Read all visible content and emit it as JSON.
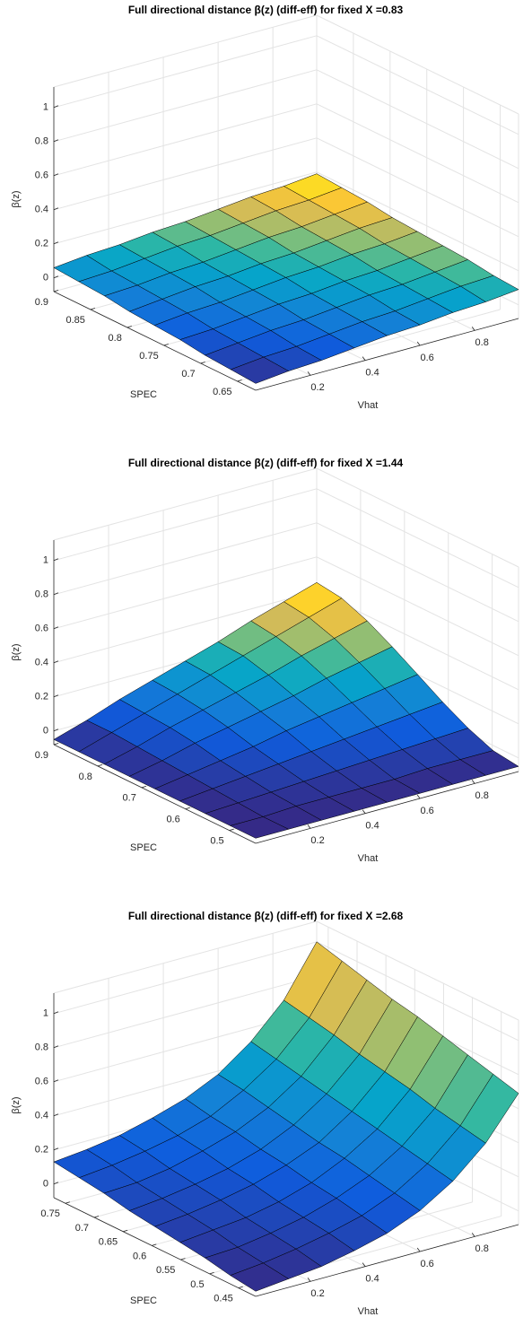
{
  "chart_data": [
    {
      "type": "surface",
      "title": "Full directional distance β(z) (diff-eff) for fixed X =0.83",
      "xlabel": "Vhat",
      "ylabel": "SPEC",
      "zlabel": "β(z)",
      "colormap": "parula",
      "grid": true,
      "xlim": [
        0,
        0.96
      ],
      "ylim": [
        0.625,
        0.9
      ],
      "zlim": [
        -0.08,
        1.12
      ],
      "xticks": [
        0.2,
        0.4,
        0.6,
        0.8
      ],
      "yticks": [
        0.65,
        0.7,
        0.75,
        0.8,
        0.85,
        0.9
      ],
      "zticks": [
        0,
        0.2,
        0.4,
        0.6,
        0.8,
        1
      ],
      "x": [
        0,
        0.12,
        0.24,
        0.36,
        0.48,
        0.6,
        0.72,
        0.84,
        0.96
      ],
      "y": [
        0.625,
        0.659,
        0.694,
        0.728,
        0.763,
        0.797,
        0.831,
        0.866,
        0.9
      ],
      "z": [
        [
          -0.04,
          -0.02,
          -0.01,
          0.01,
          0.03,
          0.04,
          0.06,
          0.07,
          0.09
        ],
        [
          -0.03,
          -0.01,
          0.0,
          0.02,
          0.04,
          0.05,
          0.07,
          0.09,
          0.1
        ],
        [
          -0.02,
          0.0,
          0.02,
          0.03,
          0.05,
          0.07,
          0.08,
          0.1,
          0.12
        ],
        [
          0.0,
          0.01,
          0.03,
          0.05,
          0.06,
          0.08,
          0.09,
          0.11,
          0.13
        ],
        [
          0.01,
          0.03,
          0.04,
          0.06,
          0.08,
          0.09,
          0.11,
          0.12,
          0.14
        ],
        [
          0.02,
          0.04,
          0.06,
          0.07,
          0.09,
          0.1,
          0.12,
          0.14,
          0.15
        ],
        [
          0.04,
          0.05,
          0.07,
          0.08,
          0.1,
          0.12,
          0.13,
          0.15,
          0.17
        ],
        [
          0.05,
          0.06,
          0.08,
          0.1,
          0.11,
          0.13,
          0.15,
          0.16,
          0.18
        ],
        [
          0.06,
          0.08,
          0.09,
          0.11,
          0.12,
          0.14,
          0.16,
          0.17,
          0.19
        ]
      ]
    },
    {
      "type": "surface",
      "title": "Full directional distance β(z) (diff-eff) for fixed X =1.44",
      "xlabel": "Vhat",
      "ylabel": "SPEC",
      "zlabel": "β(z)",
      "colormap": "parula",
      "grid": true,
      "xlim": [
        0,
        0.96
      ],
      "ylim": [
        0.44,
        0.9
      ],
      "zlim": [
        -0.08,
        1.12
      ],
      "xticks": [
        0.2,
        0.4,
        0.6,
        0.8
      ],
      "yticks": [
        0.5,
        0.6,
        0.7,
        0.8,
        0.9
      ],
      "zticks": [
        0,
        0.2,
        0.4,
        0.6,
        0.8,
        1
      ],
      "x": [
        0,
        0.12,
        0.24,
        0.36,
        0.48,
        0.6,
        0.72,
        0.84,
        0.96
      ],
      "y": [
        0.44,
        0.498,
        0.555,
        0.613,
        0.67,
        0.728,
        0.785,
        0.843,
        0.9
      ],
      "z": [
        [
          -0.05,
          -0.05,
          -0.05,
          -0.05,
          -0.05,
          -0.05,
          -0.05,
          -0.05,
          -0.05
        ],
        [
          -0.05,
          -0.05,
          -0.04,
          -0.04,
          -0.04,
          -0.04,
          -0.03,
          -0.03,
          -0.03
        ],
        [
          -0.05,
          -0.04,
          -0.03,
          -0.02,
          -0.01,
          0.0,
          0.01,
          0.02,
          0.03
        ],
        [
          -0.05,
          -0.03,
          -0.01,
          0.01,
          0.03,
          0.05,
          0.07,
          0.09,
          0.11
        ],
        [
          -0.05,
          -0.02,
          0.01,
          0.04,
          0.08,
          0.11,
          0.14,
          0.17,
          0.2
        ],
        [
          -0.05,
          -0.01,
          0.04,
          0.08,
          0.12,
          0.16,
          0.21,
          0.25,
          0.29
        ],
        [
          -0.05,
          0.0,
          0.06,
          0.11,
          0.16,
          0.21,
          0.27,
          0.32,
          0.37
        ],
        [
          -0.05,
          0.01,
          0.07,
          0.13,
          0.19,
          0.25,
          0.31,
          0.37,
          0.43
        ],
        [
          -0.05,
          0.01,
          0.08,
          0.14,
          0.2,
          0.26,
          0.33,
          0.39,
          0.45
        ]
      ]
    },
    {
      "type": "surface",
      "title": "Full directional distance β(z) (diff-eff) for fixed X =2.68",
      "xlabel": "Vhat",
      "ylabel": "SPEC",
      "zlabel": "β(z)",
      "colormap": "parula",
      "grid": true,
      "xlim": [
        0,
        0.96
      ],
      "ylim": [
        0.42,
        0.77
      ],
      "zlim": [
        -0.08,
        1.12
      ],
      "xticks": [
        0.2,
        0.4,
        0.6,
        0.8
      ],
      "yticks": [
        0.45,
        0.5,
        0.55,
        0.6,
        0.65,
        0.7,
        0.75
      ],
      "zticks": [
        0,
        0.2,
        0.4,
        0.6,
        0.8,
        1
      ],
      "x": [
        0,
        0.12,
        0.24,
        0.36,
        0.48,
        0.6,
        0.72,
        0.84,
        0.96
      ],
      "y": [
        0.42,
        0.464,
        0.508,
        0.551,
        0.595,
        0.639,
        0.683,
        0.726,
        0.77
      ],
      "z": [
        [
          -0.05,
          -0.03,
          -0.01,
          0.03,
          0.08,
          0.16,
          0.28,
          0.45,
          0.69
        ],
        [
          -0.03,
          -0.01,
          0.02,
          0.06,
          0.11,
          0.19,
          0.31,
          0.48,
          0.73
        ],
        [
          0.0,
          0.01,
          0.04,
          0.08,
          0.14,
          0.22,
          0.34,
          0.51,
          0.77
        ],
        [
          0.02,
          0.04,
          0.06,
          0.1,
          0.16,
          0.25,
          0.37,
          0.55,
          0.81
        ],
        [
          0.04,
          0.06,
          0.09,
          0.13,
          0.19,
          0.27,
          0.4,
          0.58,
          0.85
        ],
        [
          0.06,
          0.08,
          0.11,
          0.15,
          0.21,
          0.3,
          0.43,
          0.61,
          0.88
        ],
        [
          0.09,
          0.1,
          0.13,
          0.18,
          0.24,
          0.33,
          0.46,
          0.65,
          0.92
        ],
        [
          0.11,
          0.13,
          0.16,
          0.2,
          0.26,
          0.36,
          0.49,
          0.68,
          0.96
        ],
        [
          0.13,
          0.15,
          0.18,
          0.23,
          0.29,
          0.38,
          0.52,
          0.71,
          1.0
        ]
      ]
    }
  ]
}
